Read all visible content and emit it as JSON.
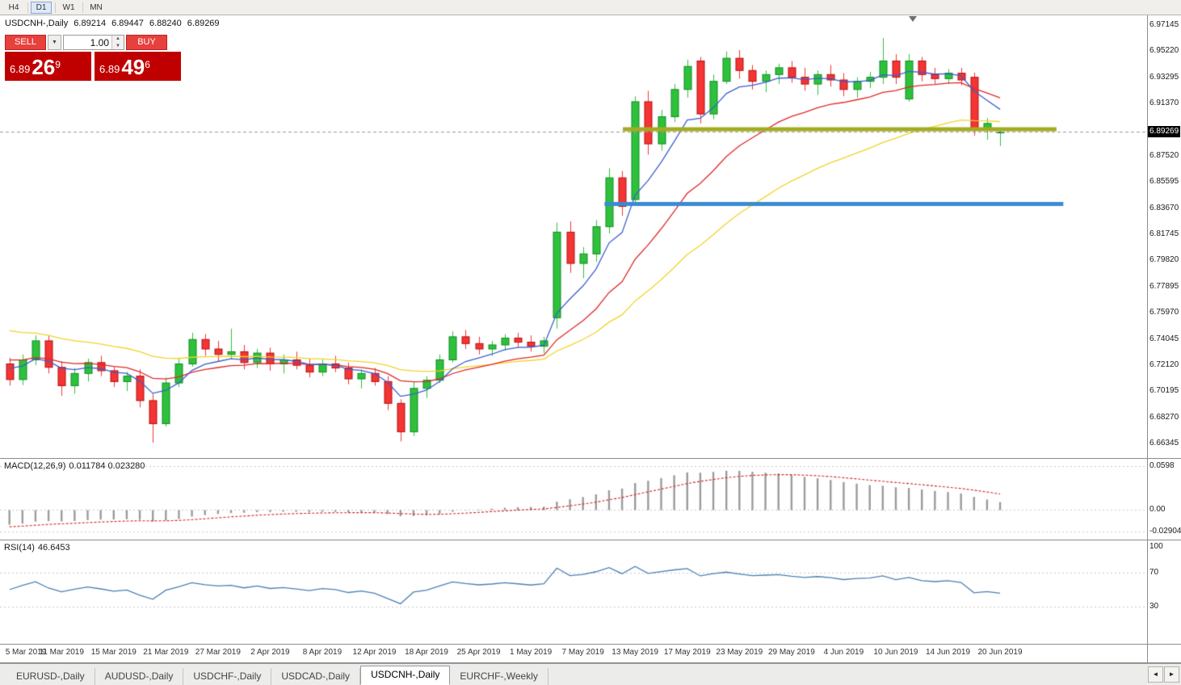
{
  "toolbar": {
    "timeframes": [
      {
        "label": "H4",
        "active": false
      },
      {
        "label": "D1",
        "active": true
      },
      {
        "label": "W1",
        "active": false
      },
      {
        "label": "MN",
        "active": false
      }
    ]
  },
  "chart_header": {
    "symbol": "USDCNH-,Daily",
    "open": "6.89214",
    "high": "6.89447",
    "low": "6.88240",
    "close": "6.89269"
  },
  "trade_panel": {
    "sell_label": "SELL",
    "buy_label": "BUY",
    "volume": "1.00",
    "sell_price_small": "6.89",
    "sell_price_big": "26",
    "sell_price_sup": "9",
    "buy_price_small": "6.89",
    "buy_price_big": "49",
    "buy_price_sup": "6"
  },
  "icons": {
    "dropdown": "▼",
    "spin_up": "▲",
    "spin_down": "▼",
    "tab_scroll_left": "◄",
    "tab_scroll_right": "►"
  },
  "price_axis": {
    "current_price": "6.89269"
  },
  "macd_panel": {
    "title": "MACD(12,26,9)",
    "values": "0.011784 0.023280",
    "axis_labels": [
      "0.0598",
      "0.00",
      "-0.029049"
    ]
  },
  "rsi_panel": {
    "title": "RSI(14)",
    "values": "46.6453",
    "axis_labels": [
      "100",
      "70",
      "30"
    ]
  },
  "tabs": {
    "items": [
      {
        "label": "EURUSD-,Daily",
        "active": false
      },
      {
        "label": "AUDUSD-,Daily",
        "active": false
      },
      {
        "label": "USDCHF-,Daily",
        "active": false
      },
      {
        "label": "USDCAD-,Daily",
        "active": false
      },
      {
        "label": "USDCNH-,Daily",
        "active": true
      },
      {
        "label": "EURCHF-,Weekly",
        "active": false
      }
    ]
  },
  "colors": {
    "candle_up": "#2fc13b",
    "candle_up_border": "#0f8c26",
    "candle_down": "#f53434",
    "candle_down_border": "#b31010",
    "ma_fast": "#3a5fcd",
    "ma_mid": "#e02828",
    "ma_slow": "#f2d327",
    "hline_olive": "#a3ab20",
    "hline_blue": "#3a8bd2",
    "macd_bar": "#9b9b9b",
    "macd_signal": "#d42424",
    "rsi_line": "#4a7fb5",
    "current_price_line": "#9a9a9a",
    "badge_bg": "#000000",
    "level_line": "#c8c8c8"
  },
  "chart_data": {
    "type": "candlestick",
    "title": "USDCNH-,Daily",
    "symbol": "USDCNH",
    "timeframe": "Daily",
    "y_range": [
      6.66345,
      6.97145
    ],
    "y_axis_labels": [
      "6.97145",
      "6.95220",
      "6.93295",
      "6.91370",
      "6.87520",
      "6.85595",
      "6.83670",
      "6.81745",
      "6.79820",
      "6.77895",
      "6.75970",
      "6.74045",
      "6.72120",
      "6.70195",
      "6.68270",
      "6.66345"
    ],
    "x_labels": [
      "5 Mar 2019",
      "11 Mar 2019",
      "15 Mar 2019",
      "21 Mar 2019",
      "27 Mar 2019",
      "2 Apr 2019",
      "8 Apr 2019",
      "12 Apr 2019",
      "18 Apr 2019",
      "25 Apr 2019",
      "1 May 2019",
      "7 May 2019",
      "13 May 2019",
      "17 May 2019",
      "23 May 2019",
      "29 May 2019",
      "4 Jun 2019",
      "10 Jun 2019",
      "14 Jun 2019",
      "20 Jun 2019"
    ],
    "x_tick_every": 4,
    "right_shift_bars": 11,
    "current_price": 6.89269,
    "ohlc": [
      [
        6.722,
        6.7265,
        6.706,
        6.7105
      ],
      [
        6.7105,
        6.729,
        6.7065,
        6.725
      ],
      [
        6.725,
        6.743,
        6.721,
        6.739
      ],
      [
        6.739,
        6.743,
        6.715,
        6.7195
      ],
      [
        6.7195,
        6.724,
        6.6985,
        6.706
      ],
      [
        6.706,
        6.719,
        6.7,
        6.715
      ],
      [
        6.715,
        6.726,
        6.709,
        6.723
      ],
      [
        6.723,
        6.728,
        6.713,
        6.717
      ],
      [
        6.717,
        6.72,
        6.705,
        6.709
      ],
      [
        6.709,
        6.716,
        6.702,
        6.713
      ],
      [
        6.713,
        6.718,
        6.69,
        6.695
      ],
      [
        6.695,
        6.7,
        6.664,
        6.678
      ],
      [
        6.678,
        6.712,
        6.676,
        6.708
      ],
      [
        6.708,
        6.726,
        6.705,
        6.722
      ],
      [
        6.722,
        6.745,
        6.72,
        6.74
      ],
      [
        6.74,
        6.744,
        6.728,
        6.733
      ],
      [
        6.733,
        6.739,
        6.724,
        6.729
      ],
      [
        6.729,
        6.748,
        6.726,
        6.731
      ],
      [
        6.731,
        6.736,
        6.718,
        6.723
      ],
      [
        6.723,
        6.733,
        6.719,
        6.73
      ],
      [
        6.73,
        6.734,
        6.717,
        6.722
      ],
      [
        6.722,
        6.729,
        6.715,
        6.725
      ],
      [
        6.725,
        6.731,
        6.718,
        6.721
      ],
      [
        6.721,
        6.726,
        6.712,
        6.716
      ],
      [
        6.716,
        6.725,
        6.713,
        6.722
      ],
      [
        6.722,
        6.728,
        6.716,
        6.719
      ],
      [
        6.719,
        6.723,
        6.707,
        6.711
      ],
      [
        6.711,
        6.718,
        6.704,
        6.715
      ],
      [
        6.715,
        6.719,
        6.706,
        6.709
      ],
      [
        6.709,
        6.713,
        6.688,
        6.693
      ],
      [
        6.693,
        6.696,
        6.665,
        6.672
      ],
      [
        6.672,
        6.709,
        6.669,
        6.704
      ],
      [
        6.704,
        6.713,
        6.697,
        6.71
      ],
      [
        6.71,
        6.729,
        6.708,
        6.725
      ],
      [
        6.725,
        6.746,
        6.723,
        6.742
      ],
      [
        6.742,
        6.747,
        6.733,
        6.737
      ],
      [
        6.737,
        6.742,
        6.729,
        6.733
      ],
      [
        6.733,
        6.739,
        6.728,
        6.736
      ],
      [
        6.736,
        6.744,
        6.732,
        6.741
      ],
      [
        6.741,
        6.745,
        6.734,
        6.738
      ],
      [
        6.738,
        6.743,
        6.731,
        6.735
      ],
      [
        6.735,
        6.742,
        6.73,
        6.739
      ],
      [
        6.756,
        6.826,
        6.748,
        6.819
      ],
      [
        6.819,
        6.827,
        6.789,
        6.796
      ],
      [
        6.796,
        6.808,
        6.785,
        6.803
      ],
      [
        6.803,
        6.828,
        6.797,
        6.823
      ],
      [
        6.823,
        6.866,
        6.818,
        6.859
      ],
      [
        6.859,
        6.864,
        6.831,
        6.838
      ],
      [
        6.843,
        6.919,
        6.841,
        6.915
      ],
      [
        6.915,
        6.923,
        6.876,
        6.884
      ],
      [
        6.884,
        6.909,
        6.879,
        6.904
      ],
      [
        6.904,
        6.928,
        6.9,
        6.924
      ],
      [
        6.924,
        6.946,
        6.918,
        6.941
      ],
      [
        6.945,
        6.948,
        6.899,
        6.906
      ],
      [
        6.906,
        6.935,
        6.902,
        6.93
      ],
      [
        6.93,
        6.952,
        6.928,
        6.947
      ],
      [
        6.947,
        6.953,
        6.932,
        6.938
      ],
      [
        6.938,
        6.942,
        6.924,
        6.93
      ],
      [
        6.93,
        6.938,
        6.922,
        6.935
      ],
      [
        6.935,
        6.943,
        6.928,
        6.94
      ],
      [
        6.94,
        6.945,
        6.929,
        6.933
      ],
      [
        6.933,
        6.94,
        6.923,
        6.928
      ],
      [
        6.928,
        6.938,
        6.92,
        6.935
      ],
      [
        6.935,
        6.942,
        6.926,
        6.931
      ],
      [
        6.931,
        6.936,
        6.919,
        6.924
      ],
      [
        6.924,
        6.933,
        6.918,
        6.93
      ],
      [
        6.93,
        6.937,
        6.925,
        6.933
      ],
      [
        6.933,
        6.962,
        6.928,
        6.945
      ],
      [
        6.945,
        6.95,
        6.928,
        6.933
      ],
      [
        6.917,
        6.95,
        6.915,
        6.945
      ],
      [
        6.945,
        6.948,
        6.93,
        6.935
      ],
      [
        6.935,
        6.94,
        6.928,
        6.932
      ],
      [
        6.932,
        6.939,
        6.928,
        6.936
      ],
      [
        6.936,
        6.94,
        6.927,
        6.931
      ],
      [
        6.933,
        6.9365,
        6.89,
        6.8945
      ],
      [
        6.8945,
        6.903,
        6.887,
        6.899
      ],
      [
        6.89214,
        6.89447,
        6.8824,
        6.89269
      ]
    ],
    "moving_averages": [
      {
        "name": "slow",
        "period": 30,
        "seed": 6.749,
        "color_key": "ma_slow"
      },
      {
        "name": "mid",
        "period": 15,
        "seed": 6.727,
        "color_key": "ma_mid"
      },
      {
        "name": "fast",
        "period": 6,
        "seed": 6.722,
        "color_key": "ma_fast"
      }
    ],
    "hlines": [
      {
        "price": 6.8948,
        "color_key": "hline_olive",
        "width": 5,
        "x_start_frac": 0.543,
        "x_end_frac": 0.921
      },
      {
        "price": 6.8397,
        "color_key": "hline_blue",
        "width": 5,
        "x_start_frac": 0.527,
        "x_end_frac": 0.927
      }
    ],
    "indicators": {
      "macd": {
        "fast": 12,
        "slow": 26,
        "signal": 9,
        "seed_fast": 6.7255,
        "seed_slow": 6.7458,
        "seed_signal": -0.0235,
        "range": [
          -0.0315,
          0.0635
        ],
        "levels": [
          0.0598,
          0,
          -0.029049
        ]
      },
      "rsi": {
        "period": 14,
        "range": [
          0,
          100
        ],
        "levels": [
          70,
          30
        ]
      }
    }
  }
}
